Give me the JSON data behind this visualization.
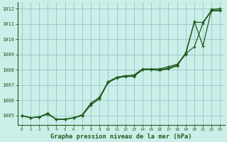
{
  "title": "Graphe pression niveau de la mer (hPa)",
  "background_color": "#cceee8",
  "grid_color": "#99cccc",
  "line_color": "#1e5c1e",
  "xlim": [
    -0.5,
    23.5
  ],
  "ylim": [
    1004.4,
    1012.4
  ],
  "yticks": [
    1005,
    1006,
    1007,
    1008,
    1009,
    1010,
    1011,
    1012
  ],
  "xticks": [
    0,
    1,
    2,
    3,
    4,
    5,
    6,
    7,
    8,
    9,
    10,
    11,
    12,
    13,
    14,
    15,
    16,
    17,
    18,
    19,
    20,
    21,
    22,
    23
  ],
  "series": [
    [
      1005.0,
      1004.85,
      1004.9,
      1005.1,
      1004.75,
      1004.75,
      1004.85,
      1005.0,
      1005.7,
      1006.1,
      1007.15,
      1007.45,
      1007.55,
      1007.55,
      1008.0,
      1008.0,
      1007.95,
      1008.05,
      1008.25,
      1009.05,
      1009.5,
      1011.05,
      1011.85,
      1011.85
    ],
    [
      1005.0,
      1004.85,
      1004.9,
      1005.1,
      1004.75,
      1004.75,
      1004.85,
      1005.0,
      1005.7,
      1006.1,
      1007.2,
      1007.5,
      1007.6,
      1007.6,
      1008.0,
      1008.0,
      1008.0,
      1008.1,
      1008.3,
      1009.1,
      1011.1,
      1011.1,
      1011.9,
      1011.9
    ],
    [
      1005.0,
      1004.85,
      1004.9,
      1005.15,
      1004.75,
      1004.75,
      1004.85,
      1005.05,
      1005.8,
      1006.2,
      1007.2,
      1007.5,
      1007.6,
      1007.65,
      1008.05,
      1008.05,
      1008.05,
      1008.2,
      1008.35,
      1009.0,
      1011.15,
      1009.55,
      1011.95,
      1012.0
    ]
  ]
}
